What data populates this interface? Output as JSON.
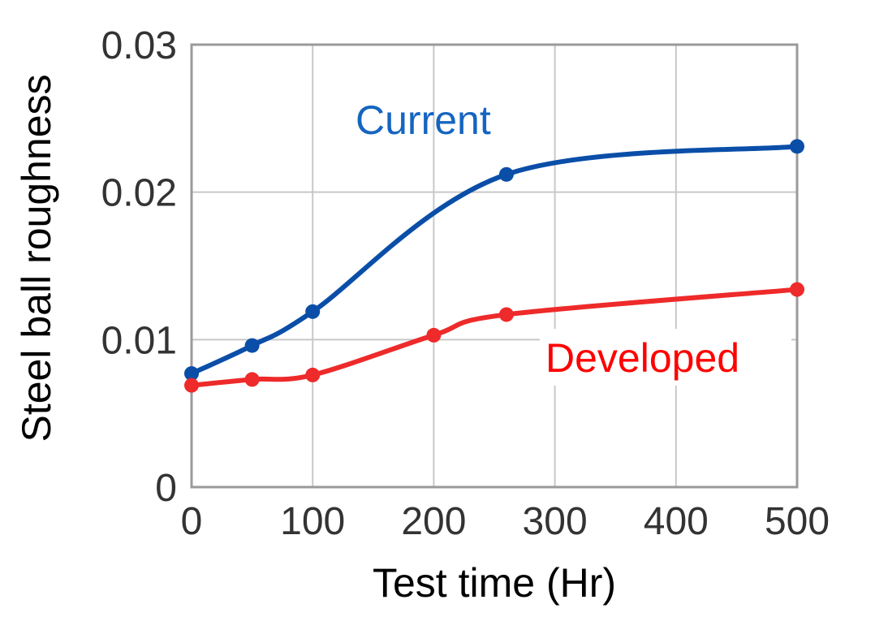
{
  "chart_data": {
    "type": "line",
    "title": "",
    "xlabel": "Test time (Hr)",
    "ylabel": "Steel ball roughness",
    "xlim": [
      0,
      500
    ],
    "ylim": [
      0,
      0.03
    ],
    "xticks": [
      "0",
      "100",
      "200",
      "300",
      "400",
      "500"
    ],
    "yticks": [
      "0",
      "0.01",
      "0.02",
      "0.03"
    ],
    "grid": true,
    "series": [
      {
        "name": "Current",
        "color": "#0a4ea8",
        "label_color": "#1565c0",
        "points": [
          [
            0,
            0.0077
          ],
          [
            50,
            0.0096
          ],
          [
            100,
            0.0119
          ],
          [
            260,
            0.0212
          ],
          [
            500,
            0.0231
          ]
        ]
      },
      {
        "name": "Developed",
        "color": "#ee2a2a",
        "label_color": "#ff0000",
        "points": [
          [
            0,
            0.0069
          ],
          [
            50,
            0.0073
          ],
          [
            100,
            0.0076
          ],
          [
            200,
            0.0103
          ],
          [
            260,
            0.0117
          ],
          [
            500,
            0.0134
          ]
        ]
      }
    ]
  }
}
